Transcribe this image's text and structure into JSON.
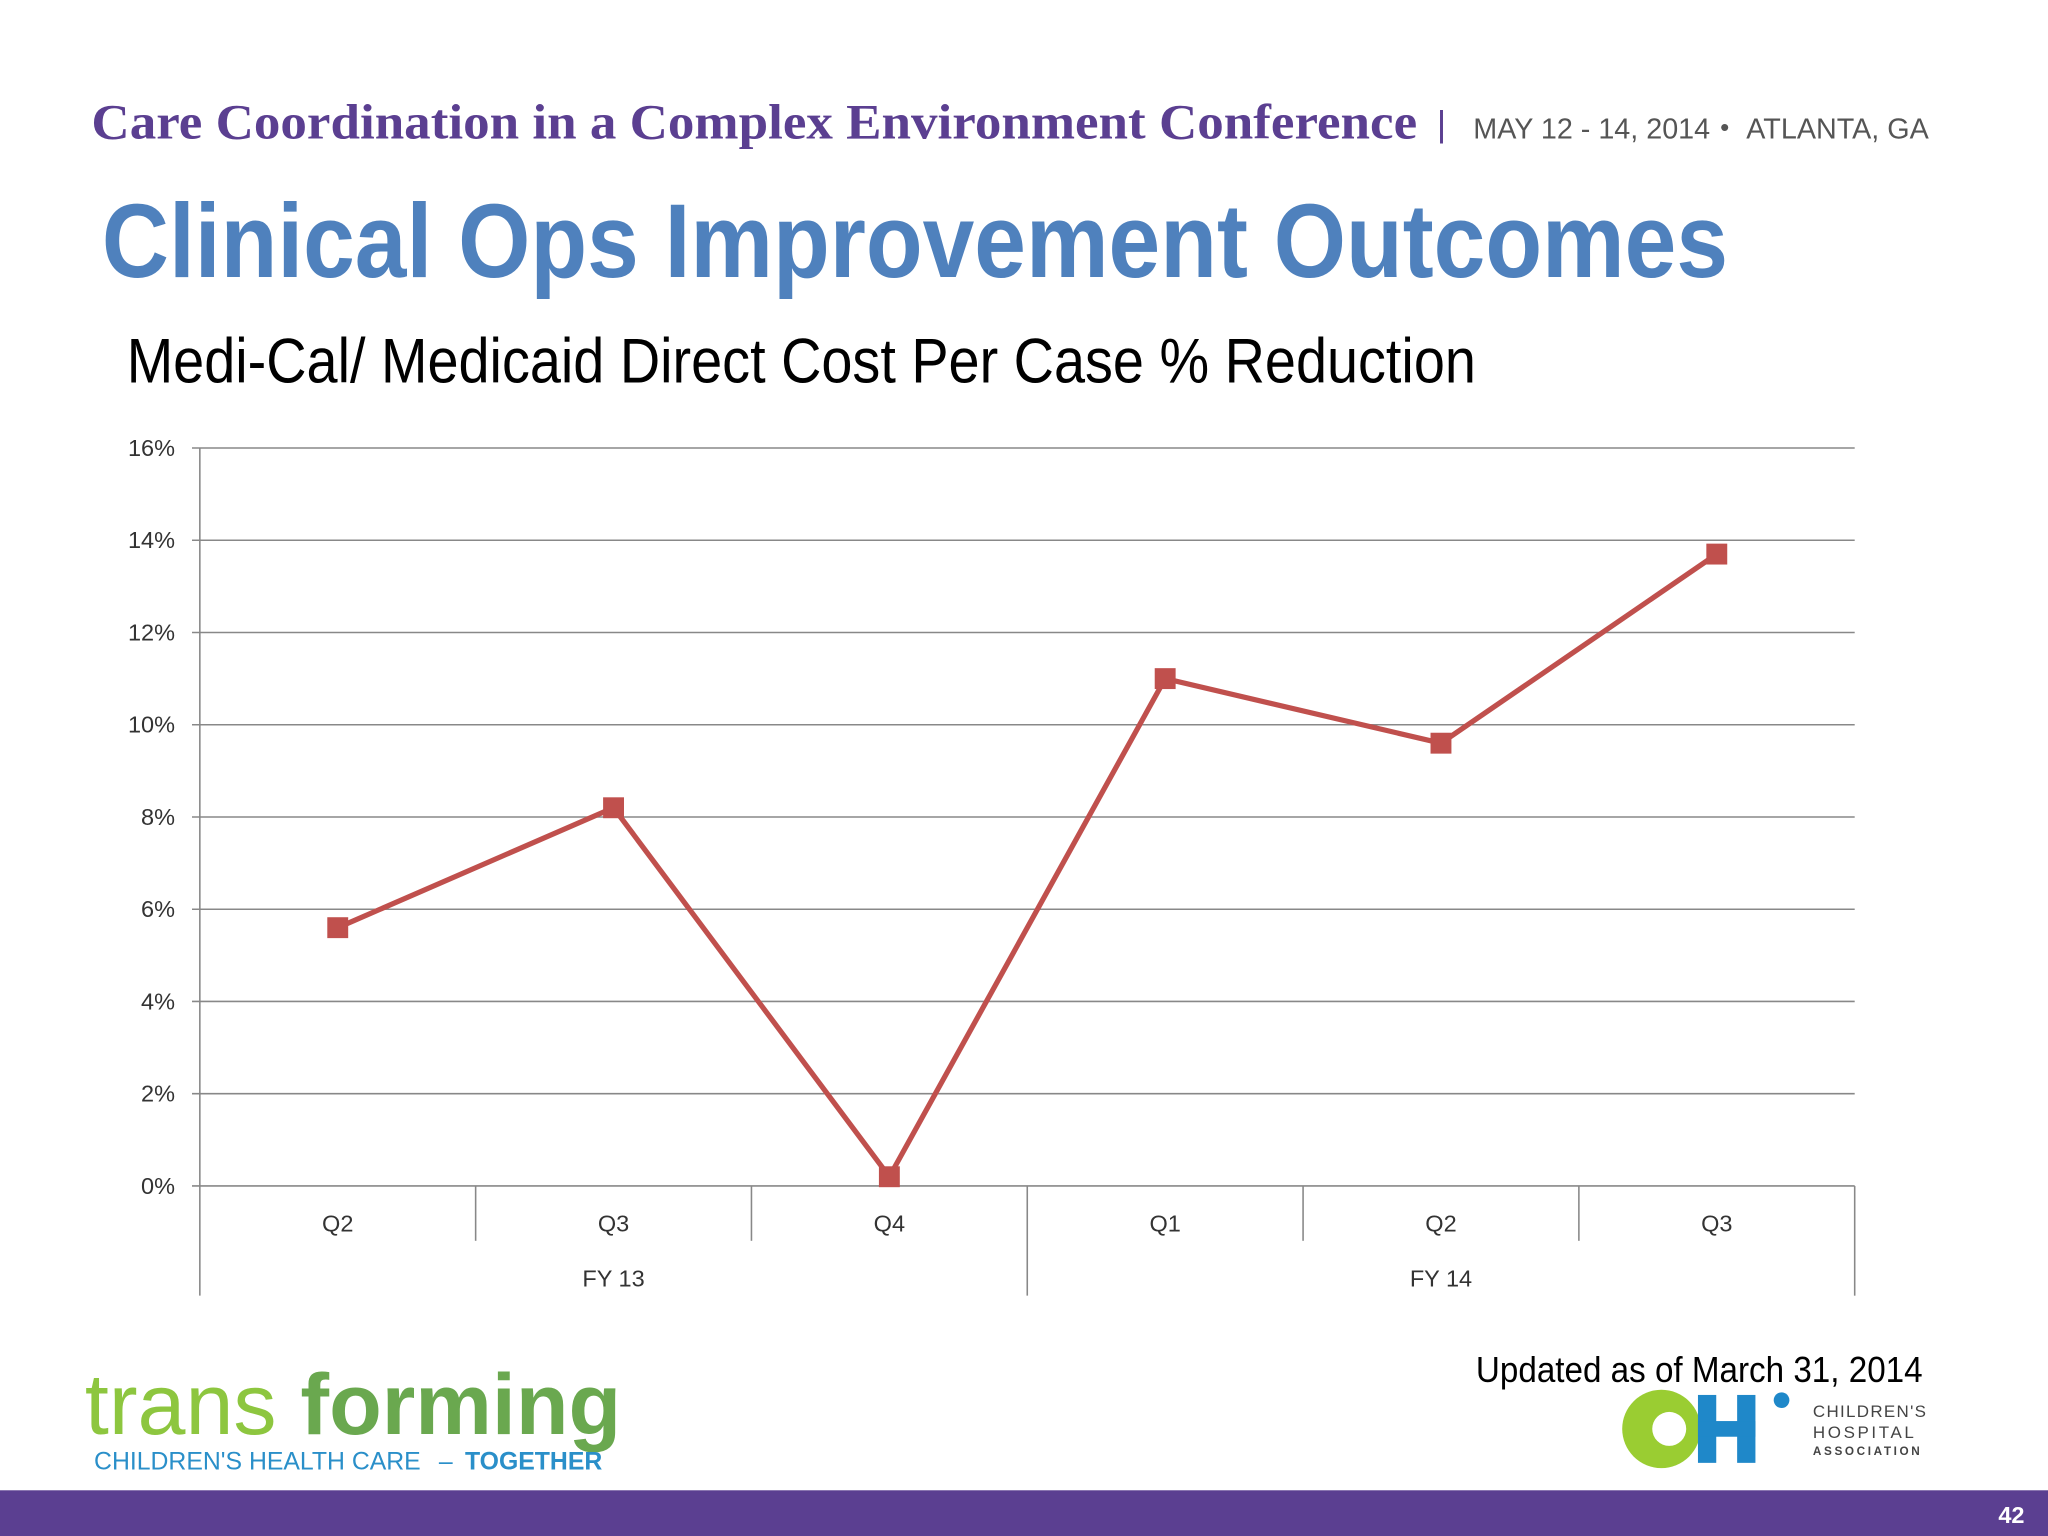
{
  "header": {
    "conference": "Care Coordination in a Complex Environment Conference",
    "separator": "|",
    "dates": "MAY 12 - 14, 2014",
    "bullet": "•",
    "location": "ATLANTA, GA"
  },
  "title": "Clinical Ops Improvement Outcomes",
  "chart_data": {
    "type": "line",
    "title": "Medi-Cal/ Medicaid Direct Cost Per Case % Reduction",
    "groups": [
      {
        "name": "FY 13",
        "categories": [
          "Q2",
          "Q3",
          "Q4"
        ]
      },
      {
        "name": "FY 14",
        "categories": [
          "Q1",
          "Q2",
          "Q3"
        ]
      }
    ],
    "series": [
      {
        "name": "Medi-Cal/ Medicaid Direct Cost Per Case % Reduction",
        "color": "#c0504d",
        "values": [
          5.6,
          8.2,
          0.2,
          11.0,
          9.6,
          13.7
        ]
      }
    ],
    "ylim": [
      0,
      16
    ],
    "yticks": [
      {
        "value": 0,
        "label": "0%"
      },
      {
        "value": 2,
        "label": "2%"
      },
      {
        "value": 4,
        "label": "4%"
      },
      {
        "value": 6,
        "label": "6%"
      },
      {
        "value": 8,
        "label": "8%"
      },
      {
        "value": 10,
        "label": "10%"
      },
      {
        "value": 12,
        "label": "12%"
      },
      {
        "value": 14,
        "label": "14%"
      },
      {
        "value": 16,
        "label": "16%"
      }
    ],
    "grid": true,
    "legend": false
  },
  "footer": {
    "updated": "Updated as of  March 31, 2014",
    "brand_light": "trans",
    "brand_bold": "forming",
    "tagline": "CHILDREN'S HEALTH CARE",
    "dash": "–",
    "tagline_bold": "TOGETHER",
    "logo_lines": [
      "CHILDREN'S",
      "HOSPITAL",
      "ASSOCIATION"
    ],
    "page_number": "42"
  }
}
